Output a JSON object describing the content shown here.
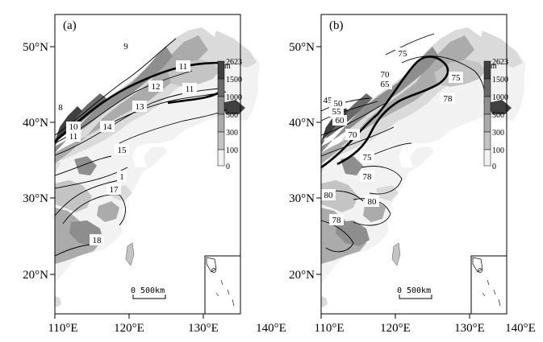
{
  "panels": [
    {
      "label": "(a)",
      "contour_labels": [
        "9",
        "11",
        "11",
        "12",
        "13",
        "8",
        "10",
        "11",
        "14",
        "15",
        "1",
        "17",
        "18"
      ],
      "legend": {
        "unit": "m",
        "ticks": [
          "2623",
          "1500",
          "1000",
          "500",
          "300",
          "100",
          "0"
        ]
      },
      "scale": {
        "zero": "0",
        "length": "500km"
      }
    },
    {
      "label": "(b)",
      "contour_labels": [
        "75",
        "70",
        "65",
        "75",
        "78",
        "45",
        "50",
        "55",
        "60",
        "70",
        "75",
        "78",
        "80",
        "80",
        "78"
      ],
      "legend": {
        "unit": "m",
        "ticks": [
          "2623",
          "1500",
          "1000",
          "500",
          "300",
          "100",
          "0"
        ]
      },
      "scale": {
        "zero": "0",
        "length": "500km"
      }
    }
  ],
  "axes": {
    "y_ticks": [
      "50°N",
      "40°N",
      "30°N",
      "20°N"
    ],
    "x_ticks_left": [
      "110°E",
      "120°E",
      "130°E",
      "140°E"
    ],
    "x_ticks_right": [
      "110°E",
      "120°E",
      "130°E",
      "140°E"
    ]
  },
  "elevation_colors": [
    "#404040",
    "#6a6a6a",
    "#8e8e8e",
    "#ababab",
    "#c4c4c4",
    "#dadada",
    "#f2f2f2"
  ]
}
